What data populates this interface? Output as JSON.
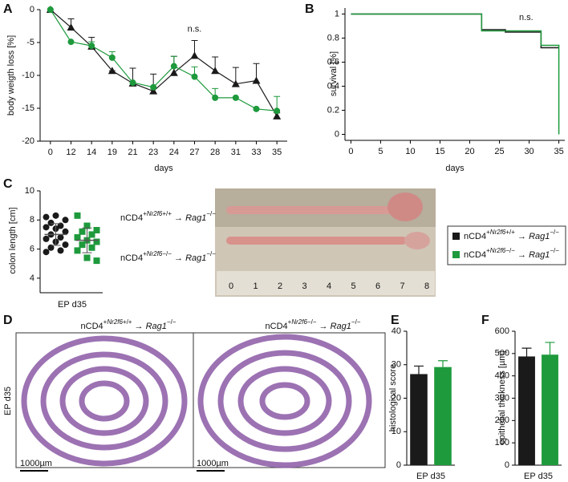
{
  "legend": {
    "entries": [
      {
        "color": "#1a1a1a",
        "parts": [
          {
            "t": "nCD4"
          },
          {
            "t": "+",
            "sup": true
          },
          {
            "t": "Nr2f6",
            "sup": true,
            "i": true
          },
          {
            "t": "+/+",
            "sup": true
          },
          {
            "t": " → "
          },
          {
            "t": "Rag1",
            "i": true
          },
          {
            "t": "−/−",
            "sup": true
          }
        ]
      },
      {
        "color": "#1e9a3c",
        "parts": [
          {
            "t": "nCD4"
          },
          {
            "t": "+",
            "sup": true
          },
          {
            "t": "Nr2f6",
            "sup": true,
            "i": true
          },
          {
            "t": "−/−",
            "sup": true
          },
          {
            "t": " → "
          },
          {
            "t": "Rag1",
            "i": true
          },
          {
            "t": "−/−",
            "sup": true
          }
        ]
      }
    ]
  },
  "photo": {
    "ruler": [
      0,
      1,
      2,
      3,
      4,
      5,
      6,
      7,
      8
    ]
  },
  "histology": {
    "label": "D",
    "side_label": "EP d35",
    "scale_bar": "1000µm"
  },
  "chart_data": [
    {
      "type": "line",
      "label": "A",
      "x_label": "days",
      "y_label": "body weigth loss [%]",
      "categories": [
        0,
        12,
        14,
        19,
        21,
        23,
        24,
        27,
        28,
        31,
        33,
        35
      ],
      "ylim": [
        -20,
        0
      ],
      "yticks": [
        -20,
        -15,
        -10,
        -5,
        0
      ],
      "annotation": {
        "text": "n.s.",
        "x": 27,
        "y": -3
      },
      "series": [
        {
          "color": "#1a1a1a",
          "marker": "triangle",
          "values": [
            0,
            -2.7,
            -5.6,
            -9.3,
            -11.2,
            -12.4,
            -9.6,
            -7.0,
            -9.3,
            -11.3,
            -10.8,
            -16.2
          ],
          "errors": [
            0,
            1.3,
            1.4,
            0,
            2.3,
            2.6,
            2.5,
            2.3,
            2.1,
            2.5,
            2.6,
            0.5
          ]
        },
        {
          "color": "#1e9a3c",
          "marker": "circle",
          "values": [
            0,
            -4.9,
            -5.5,
            -7.3,
            -11.1,
            -11.8,
            -8.6,
            -10.2,
            -13.4,
            -13.4,
            -15.1,
            -15.4
          ],
          "errors": [
            0,
            0,
            0.6,
            0.9,
            0,
            0,
            1.5,
            1.5,
            1.4,
            0,
            0,
            2.2
          ]
        }
      ]
    },
    {
      "type": "step",
      "label": "B",
      "x_label": "days",
      "y_label": "survival [%]",
      "xlim": [
        -1,
        36
      ],
      "xticks": [
        0,
        5,
        10,
        15,
        20,
        25,
        30,
        35
      ],
      "ylim": [
        -0.05,
        1.05
      ],
      "yticks": [
        0,
        0.2,
        0.4,
        0.6,
        0.8,
        1
      ],
      "annotation": {
        "text": "n.s.",
        "x": 29.5,
        "y": 0.97
      },
      "series": [
        {
          "color": "#1a1a1a",
          "x": [
            0,
            22,
            26,
            32,
            35
          ],
          "values": [
            1,
            0.87,
            0.85,
            0.72,
            0.72
          ]
        },
        {
          "color": "#1e9a3c",
          "x": [
            0,
            22,
            32,
            35,
            35
          ],
          "values": [
            1,
            0.86,
            0.74,
            0.74,
            0
          ]
        }
      ]
    },
    {
      "type": "dot",
      "label": "C",
      "x_label": "EP d35",
      "y_label": "colon length [cm]",
      "ylim": [
        3,
        10
      ],
      "yticks": [
        4,
        6,
        8,
        10
      ],
      "series": [
        {
          "color": "#1a1a1a",
          "marker": "circle",
          "values": [
            8.2,
            8.3,
            8.0,
            7.8,
            7.6,
            7.5,
            7.4,
            7.2,
            7.0,
            6.8,
            6.7,
            6.5,
            6.3,
            6.1,
            5.9,
            5.8
          ],
          "mean": 7.0,
          "sd": 0.75
        },
        {
          "color": "#1e9a3c",
          "marker": "square",
          "values": [
            8.3,
            7.6,
            7.3,
            7.2,
            7.0,
            6.8,
            6.6,
            6.5,
            6.3,
            6.1,
            5.9,
            5.4,
            5.2
          ],
          "mean": 6.6,
          "sd": 0.85
        }
      ]
    },
    {
      "type": "bar",
      "label": "E",
      "x_label": "EP d35",
      "y_label": "histological score",
      "ylim": [
        0,
        40
      ],
      "yticks": [
        0,
        10,
        20,
        30,
        40
      ],
      "series": [
        {
          "color": "#1a1a1a",
          "values": [
            27.2
          ],
          "errors": [
            2.4
          ]
        },
        {
          "color": "#1e9a3c",
          "values": [
            29.3
          ],
          "errors": [
            1.9
          ]
        }
      ]
    },
    {
      "type": "bar",
      "label": "F",
      "x_label": "EP d35",
      "y_label": "epithelial thickness [µm]",
      "ylim": [
        0,
        600
      ],
      "yticks": [
        0,
        100,
        200,
        300,
        400,
        500,
        600
      ],
      "series": [
        {
          "color": "#1a1a1a",
          "values": [
            487
          ],
          "errors": [
            37
          ]
        },
        {
          "color": "#1e9a3c",
          "values": [
            495
          ],
          "errors": [
            55
          ]
        }
      ]
    }
  ]
}
